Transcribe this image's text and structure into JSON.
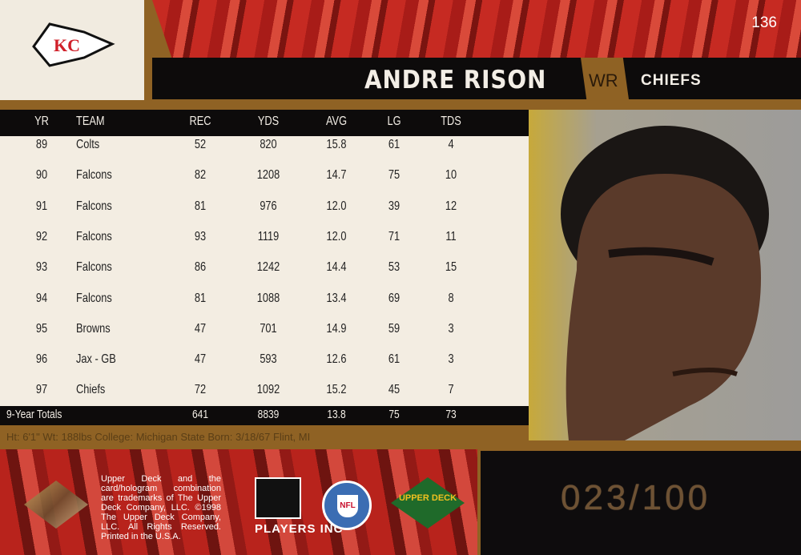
{
  "card": {
    "number": "136",
    "serial": "023/100"
  },
  "player": {
    "name": "ANDRE RISON",
    "position": "WR",
    "team": "CHIEFS"
  },
  "bio": "Ht: 6'1\" Wt: 188lbs College: Michigan State Born: 3/18/67 Flint, MI",
  "stats": {
    "headers": [
      "YR",
      "TEAM",
      "REC",
      "YDS",
      "AVG",
      "LG",
      "TDS"
    ],
    "rows": [
      [
        "89",
        "Colts",
        "52",
        "820",
        "15.8",
        "61",
        "4"
      ],
      [
        "90",
        "Falcons",
        "82",
        "1208",
        "14.7",
        "75",
        "10"
      ],
      [
        "91",
        "Falcons",
        "81",
        "976",
        "12.0",
        "39",
        "12"
      ],
      [
        "92",
        "Falcons",
        "93",
        "1119",
        "12.0",
        "71",
        "11"
      ],
      [
        "93",
        "Falcons",
        "86",
        "1242",
        "14.4",
        "53",
        "15"
      ],
      [
        "94",
        "Falcons",
        "81",
        "1088",
        "13.4",
        "69",
        "8"
      ],
      [
        "95",
        "Browns",
        "47",
        "701",
        "14.9",
        "59",
        "3"
      ],
      [
        "96",
        "Jax - GB",
        "47",
        "593",
        "12.6",
        "61",
        "3"
      ],
      [
        "97",
        "Chiefs",
        "72",
        "1092",
        "15.2",
        "45",
        "7"
      ]
    ],
    "totals": [
      "9-Year Totals",
      "641",
      "8839",
      "13.8",
      "75",
      "73"
    ]
  },
  "legal": "Upper Deck and the card/hologram combination are trademarks of The Upper Deck Company, LLC. ©1998 The Upper Deck Company, LLC. All Rights Reserved. Printed in the U.S.A.",
  "logos": {
    "team": "KC",
    "players": "PLAYERS INC",
    "nfl": "NFL",
    "upper_deck": "UPPER DECK"
  },
  "colors": {
    "gold": "#8f6224",
    "black": "#0d0b0b",
    "red": "#c62a22",
    "cream": "#f3ede2"
  }
}
